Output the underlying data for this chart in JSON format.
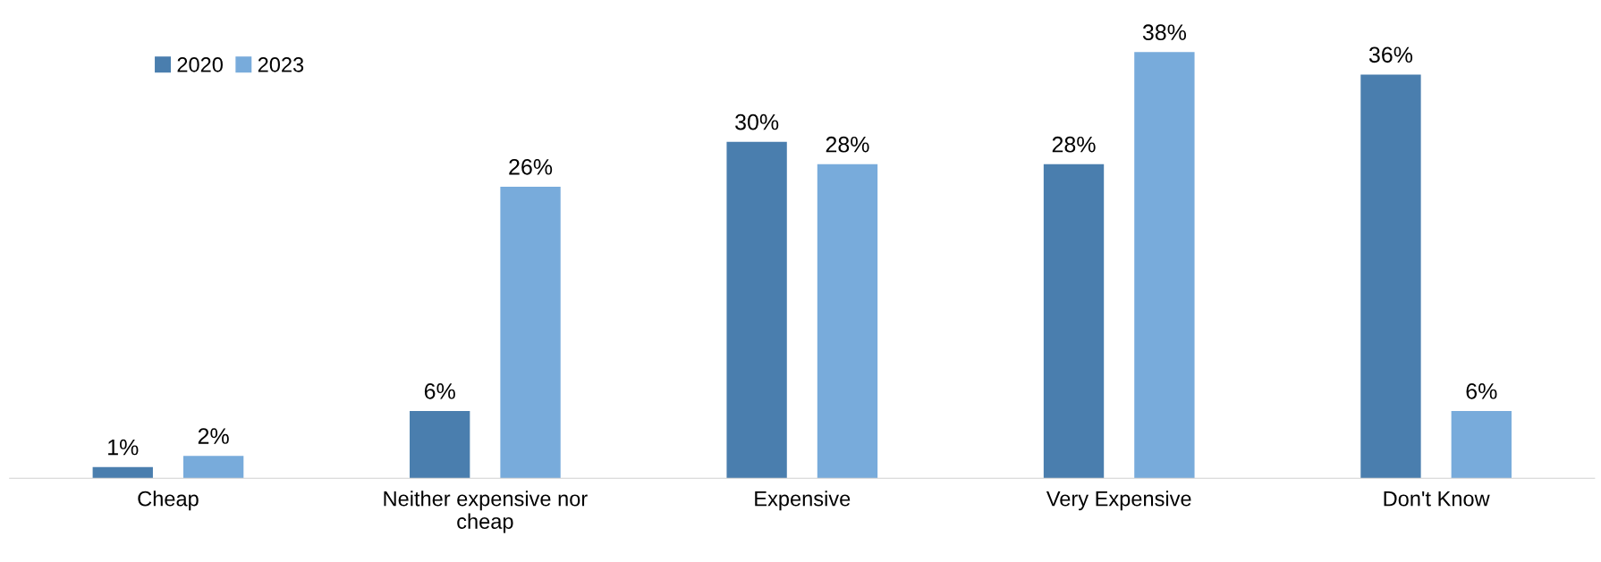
{
  "chart_data": {
    "type": "bar",
    "categories": [
      "Cheap",
      "Neither expensive nor\ncheap",
      "Expensive",
      "Very Expensive",
      "Don't Know"
    ],
    "series": [
      {
        "name": "2020",
        "color": "#4a7eae",
        "values": [
          1,
          6,
          30,
          28,
          36
        ],
        "value_labels": [
          "1%",
          "6%",
          "30%",
          "28%",
          "36%"
        ]
      },
      {
        "name": "2023",
        "color": "#78abdb",
        "values": [
          2,
          26,
          28,
          38,
          6
        ],
        "value_labels": [
          "2%",
          "26%",
          "28%",
          "38%",
          "6%"
        ]
      }
    ],
    "tick_labels": "x",
    "legend": "top left",
    "grid": false
  }
}
